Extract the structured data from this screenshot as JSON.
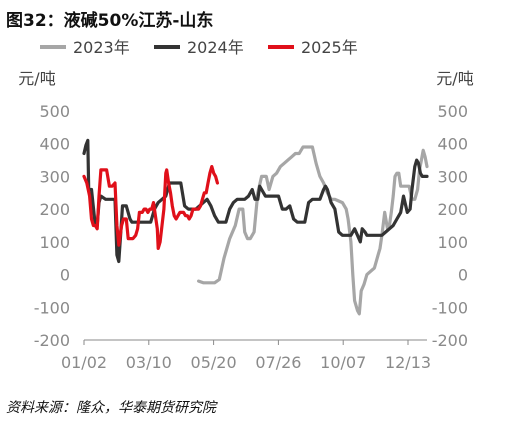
{
  "title": "图32：液碱50%江苏-山东",
  "source": "资料来源：隆众，华泰期货研究院",
  "chart_data": {
    "type": "line",
    "title": "图32：液碱50%江苏-山东",
    "unit_left": "元/吨",
    "unit_right": "元/吨",
    "x_ticks": [
      "01/02",
      "03/10",
      "05/20",
      "07/26",
      "10/07",
      "12/13"
    ],
    "x_range_days": [
      1,
      366
    ],
    "ylim": [
      -200,
      500
    ],
    "y_ticks": [
      "500",
      "400",
      "300",
      "200",
      "100",
      "0",
      "-100",
      "-200"
    ],
    "legend_position": "top",
    "grid": false,
    "series": [
      {
        "name": "2023年",
        "color": "#a6a6a6",
        "points": [
          [
            123,
            -20
          ],
          [
            128,
            -25
          ],
          [
            135,
            -25
          ],
          [
            140,
            -25
          ],
          [
            145,
            -15
          ],
          [
            150,
            50
          ],
          [
            156,
            110
          ],
          [
            162,
            150
          ],
          [
            166,
            200
          ],
          [
            170,
            200
          ],
          [
            172,
            130
          ],
          [
            175,
            110
          ],
          [
            178,
            110
          ],
          [
            182,
            130
          ],
          [
            186,
            250
          ],
          [
            190,
            300
          ],
          [
            195,
            300
          ],
          [
            198,
            260
          ],
          [
            202,
            300
          ],
          [
            206,
            310
          ],
          [
            210,
            330
          ],
          [
            214,
            340
          ],
          [
            218,
            350
          ],
          [
            222,
            360
          ],
          [
            226,
            370
          ],
          [
            230,
            370
          ],
          [
            234,
            390
          ],
          [
            240,
            390
          ],
          [
            244,
            390
          ],
          [
            248,
            340
          ],
          [
            252,
            300
          ],
          [
            256,
            280
          ],
          [
            260,
            250
          ],
          [
            264,
            230
          ],
          [
            268,
            230
          ],
          [
            272,
            225
          ],
          [
            276,
            220
          ],
          [
            280,
            200
          ],
          [
            282,
            170
          ],
          [
            285,
            100
          ],
          [
            287,
            0
          ],
          [
            289,
            -80
          ],
          [
            292,
            -110
          ],
          [
            294,
            -120
          ],
          [
            296,
            -50
          ],
          [
            299,
            -30
          ],
          [
            302,
            0
          ],
          [
            306,
            10
          ],
          [
            310,
            20
          ],
          [
            314,
            60
          ],
          [
            316,
            80
          ],
          [
            318,
            120
          ],
          [
            321,
            190
          ],
          [
            324,
            140
          ],
          [
            326,
            150
          ],
          [
            328,
            190
          ],
          [
            330,
            240
          ],
          [
            332,
            300
          ],
          [
            334,
            310
          ],
          [
            336,
            310
          ],
          [
            338,
            270
          ],
          [
            342,
            270
          ],
          [
            347,
            270
          ],
          [
            350,
            230
          ],
          [
            353,
            230
          ],
          [
            356,
            260
          ],
          [
            358,
            320
          ],
          [
            360,
            350
          ],
          [
            362,
            380
          ],
          [
            364,
            360
          ],
          [
            366,
            330
          ]
        ]
      },
      {
        "name": "2024年",
        "color": "#333333",
        "points": [
          [
            1,
            370
          ],
          [
            3,
            395
          ],
          [
            5,
            410
          ],
          [
            6,
            260
          ],
          [
            9,
            260
          ],
          [
            13,
            150
          ],
          [
            15,
            150
          ],
          [
            17,
            220
          ],
          [
            19,
            240
          ],
          [
            24,
            230
          ],
          [
            30,
            230
          ],
          [
            34,
            230
          ],
          [
            36,
            60
          ],
          [
            38,
            40
          ],
          [
            40,
            120
          ],
          [
            42,
            210
          ],
          [
            46,
            210
          ],
          [
            50,
            170
          ],
          [
            52,
            160
          ],
          [
            55,
            160
          ],
          [
            60,
            160
          ],
          [
            64,
            160
          ],
          [
            68,
            160
          ],
          [
            72,
            160
          ],
          [
            76,
            200
          ],
          [
            80,
            220
          ],
          [
            84,
            230
          ],
          [
            88,
            240
          ],
          [
            92,
            280
          ],
          [
            96,
            280
          ],
          [
            100,
            280
          ],
          [
            104,
            280
          ],
          [
            108,
            210
          ],
          [
            112,
            200
          ],
          [
            116,
            200
          ],
          [
            120,
            200
          ],
          [
            124,
            210
          ],
          [
            128,
            220
          ],
          [
            132,
            230
          ],
          [
            136,
            210
          ],
          [
            140,
            180
          ],
          [
            144,
            160
          ],
          [
            148,
            160
          ],
          [
            152,
            160
          ],
          [
            156,
            200
          ],
          [
            160,
            220
          ],
          [
            164,
            230
          ],
          [
            168,
            230
          ],
          [
            172,
            230
          ],
          [
            176,
            240
          ],
          [
            180,
            260
          ],
          [
            183,
            230
          ],
          [
            186,
            230
          ],
          [
            188,
            270
          ],
          [
            190,
            260
          ],
          [
            194,
            240
          ],
          [
            198,
            240
          ],
          [
            202,
            240
          ],
          [
            208,
            240
          ],
          [
            212,
            200
          ],
          [
            216,
            200
          ],
          [
            220,
            210
          ],
          [
            224,
            170
          ],
          [
            228,
            160
          ],
          [
            232,
            160
          ],
          [
            236,
            160
          ],
          [
            240,
            220
          ],
          [
            244,
            230
          ],
          [
            248,
            230
          ],
          [
            252,
            230
          ],
          [
            256,
            260
          ],
          [
            258,
            270
          ],
          [
            260,
            260
          ],
          [
            264,
            220
          ],
          [
            268,
            200
          ],
          [
            272,
            130
          ],
          [
            276,
            120
          ],
          [
            280,
            120
          ],
          [
            285,
            120
          ],
          [
            289,
            140
          ],
          [
            292,
            120
          ],
          [
            295,
            100
          ],
          [
            297,
            140
          ],
          [
            300,
            130
          ],
          [
            302,
            120
          ],
          [
            306,
            120
          ],
          [
            312,
            120
          ],
          [
            318,
            120
          ],
          [
            322,
            130
          ],
          [
            326,
            140
          ],
          [
            330,
            150
          ],
          [
            334,
            170
          ],
          [
            338,
            190
          ],
          [
            341,
            240
          ],
          [
            345,
            190
          ],
          [
            348,
            200
          ],
          [
            350,
            260
          ],
          [
            353,
            330
          ],
          [
            355,
            350
          ],
          [
            357,
            340
          ],
          [
            359,
            310
          ],
          [
            361,
            300
          ],
          [
            364,
            300
          ],
          [
            366,
            300
          ]
        ]
      },
      {
        "name": "2025年",
        "color": "#e0101a",
        "points": [
          [
            1,
            300
          ],
          [
            4,
            280
          ],
          [
            7,
            240
          ],
          [
            9,
            170
          ],
          [
            11,
            150
          ],
          [
            13,
            150
          ],
          [
            15,
            140
          ],
          [
            17,
            240
          ],
          [
            19,
            320
          ],
          [
            22,
            320
          ],
          [
            25,
            320
          ],
          [
            28,
            270
          ],
          [
            31,
            270
          ],
          [
            34,
            280
          ],
          [
            36,
            150
          ],
          [
            38,
            90
          ],
          [
            41,
            150
          ],
          [
            43,
            170
          ],
          [
            46,
            170
          ],
          [
            48,
            110
          ],
          [
            50,
            110
          ],
          [
            53,
            110
          ],
          [
            56,
            120
          ],
          [
            58,
            140
          ],
          [
            60,
            190
          ],
          [
            63,
            190
          ],
          [
            65,
            200
          ],
          [
            67,
            200
          ],
          [
            69,
            190
          ],
          [
            71,
            200
          ],
          [
            73,
            200
          ],
          [
            75,
            220
          ],
          [
            77,
            180
          ],
          [
            79,
            140
          ],
          [
            80,
            80
          ],
          [
            82,
            100
          ],
          [
            84,
            150
          ],
          [
            86,
            200
          ],
          [
            88,
            310
          ],
          [
            89,
            320
          ],
          [
            91,
            280
          ],
          [
            93,
            250
          ],
          [
            95,
            210
          ],
          [
            97,
            180
          ],
          [
            99,
            170
          ],
          [
            101,
            180
          ],
          [
            103,
            190
          ],
          [
            105,
            190
          ],
          [
            107,
            190
          ],
          [
            109,
            180
          ],
          [
            111,
            180
          ],
          [
            113,
            170
          ],
          [
            115,
            180
          ],
          [
            117,
            200
          ],
          [
            119,
            200
          ],
          [
            121,
            200
          ],
          [
            123,
            200
          ],
          [
            125,
            210
          ],
          [
            127,
            230
          ],
          [
            129,
            250
          ],
          [
            131,
            250
          ],
          [
            133,
            280
          ],
          [
            135,
            310
          ],
          [
            137,
            330
          ],
          [
            139,
            310
          ],
          [
            141,
            300
          ],
          [
            143,
            280
          ]
        ]
      }
    ]
  }
}
